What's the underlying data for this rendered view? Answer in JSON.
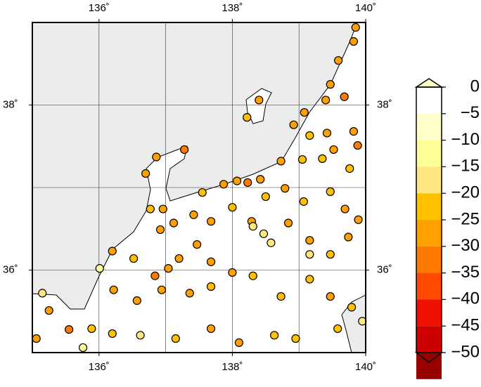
{
  "chart_data": {
    "type": "map-scatter",
    "xlim": [
      135,
      140
    ],
    "ylim": [
      35,
      39
    ],
    "xticks": [
      {
        "value": 136,
        "label": "136˚"
      },
      {
        "value": 138,
        "label": "138˚"
      },
      {
        "value": 140,
        "label": "140˚"
      }
    ],
    "yticks": [
      {
        "value": 36,
        "label": "36˚"
      },
      {
        "value": 38,
        "label": "38˚"
      }
    ],
    "grid": true,
    "xgrid": [
      136,
      137,
      138,
      139
    ],
    "ygrid": [
      36,
      37,
      38
    ],
    "sea_color": "#ececec",
    "land_color": "#ffffff",
    "lon": [
      139.85,
      139.82,
      139.59,
      139.47,
      139.4,
      139.68,
      139.08,
      138.92,
      139.16,
      139.42,
      139.82,
      139.88,
      139.52,
      139.76,
      139.35,
      139.05,
      138.73,
      138.42,
      138.23,
      138.07,
      137.87,
      137.55,
      137.28,
      136.86,
      136.7,
      136.77,
      136.96,
      136.92,
      137.12,
      137.42,
      137.68,
      138.0,
      138.29,
      138.5,
      138.79,
      139.07,
      139.47,
      139.69,
      139.89,
      138.31,
      138.47,
      138.58,
      138.84,
      139.16,
      139.47,
      139.74,
      137.47,
      137.2,
      137.04,
      136.84,
      136.52,
      136.2,
      136.01,
      136.22,
      136.57,
      136.94,
      137.36,
      137.68,
      138.0,
      138.31,
      138.73,
      139.16,
      139.47,
      139.79,
      135.15,
      135.25,
      135.55,
      135.89,
      136.2,
      136.62,
      137.15,
      137.68,
      138.1,
      138.63,
      138.95,
      139.58,
      139.95,
      135.06,
      135.76,
      138.4,
      138.22,
      139.16,
      137.68
    ],
    "lat": [
      38.94,
      38.77,
      38.54,
      38.25,
      38.06,
      38.1,
      37.91,
      37.76,
      37.63,
      37.66,
      37.68,
      37.51,
      37.46,
      37.23,
      37.35,
      37.34,
      37.32,
      37.1,
      37.06,
      37.08,
      37.04,
      36.94,
      37.46,
      37.37,
      37.17,
      36.74,
      36.74,
      36.49,
      36.57,
      36.67,
      36.59,
      36.76,
      36.59,
      36.89,
      36.99,
      36.83,
      36.95,
      36.74,
      36.61,
      36.53,
      36.44,
      36.33,
      36.57,
      36.36,
      36.19,
      36.4,
      36.31,
      36.14,
      36.02,
      35.93,
      36.14,
      36.23,
      36.02,
      35.76,
      35.63,
      35.76,
      35.72,
      35.8,
      35.97,
      35.93,
      35.68,
      35.89,
      35.68,
      35.55,
      35.72,
      35.51,
      35.28,
      35.29,
      35.23,
      35.21,
      35.17,
      35.29,
      35.12,
      35.21,
      35.17,
      35.29,
      35.38,
      35.17,
      35.06,
      38.06,
      37.85,
      36.19,
      36.1
    ],
    "values": [
      -22,
      -22,
      -20,
      -22,
      -20,
      -25,
      -22,
      -22,
      -18,
      -22,
      -22,
      -25,
      -22,
      -18,
      -15,
      -18,
      -22,
      -22,
      -27,
      -22,
      -20,
      -18,
      -25,
      -22,
      -20,
      -18,
      -20,
      -22,
      -22,
      -20,
      -22,
      -18,
      -22,
      -18,
      -20,
      -18,
      -18,
      -20,
      -22,
      -12,
      -12,
      -12,
      -22,
      -20,
      -18,
      -20,
      -22,
      -22,
      -20,
      -25,
      -18,
      -20,
      -8,
      -22,
      -22,
      -20,
      -22,
      -18,
      -20,
      -15,
      -15,
      -18,
      -20,
      -18,
      -10,
      -20,
      -25,
      -18,
      -18,
      -12,
      -15,
      -20,
      -20,
      -15,
      -18,
      -15,
      -12,
      -22,
      -8,
      -20,
      -18,
      -12,
      -22
    ],
    "colorbar": {
      "lim": [
        -50,
        0
      ],
      "ticks": [
        0,
        {
          "value": -5,
          "label": "−5"
        },
        {
          "value": -10,
          "label": "−10"
        },
        {
          "value": -15,
          "label": "−15"
        },
        {
          "value": -20,
          "label": "−20"
        },
        {
          "value": -25,
          "label": "−25"
        },
        {
          "value": -30,
          "label": "−30"
        },
        {
          "value": -35,
          "label": "−35"
        },
        {
          "value": -40,
          "label": "−40"
        },
        {
          "value": -45,
          "label": "−45"
        },
        {
          "value": -50,
          "label": "−50"
        }
      ],
      "colors": [
        "#ffffcc",
        "#ffff99",
        "#ffe680",
        "#ffc000",
        "#ffa000",
        "#ff7a00",
        "#ff4a00",
        "#f01000",
        "#cc0000",
        "#990000"
      ],
      "top_color": "#ffffcc",
      "bottom_color": "#990000"
    }
  }
}
